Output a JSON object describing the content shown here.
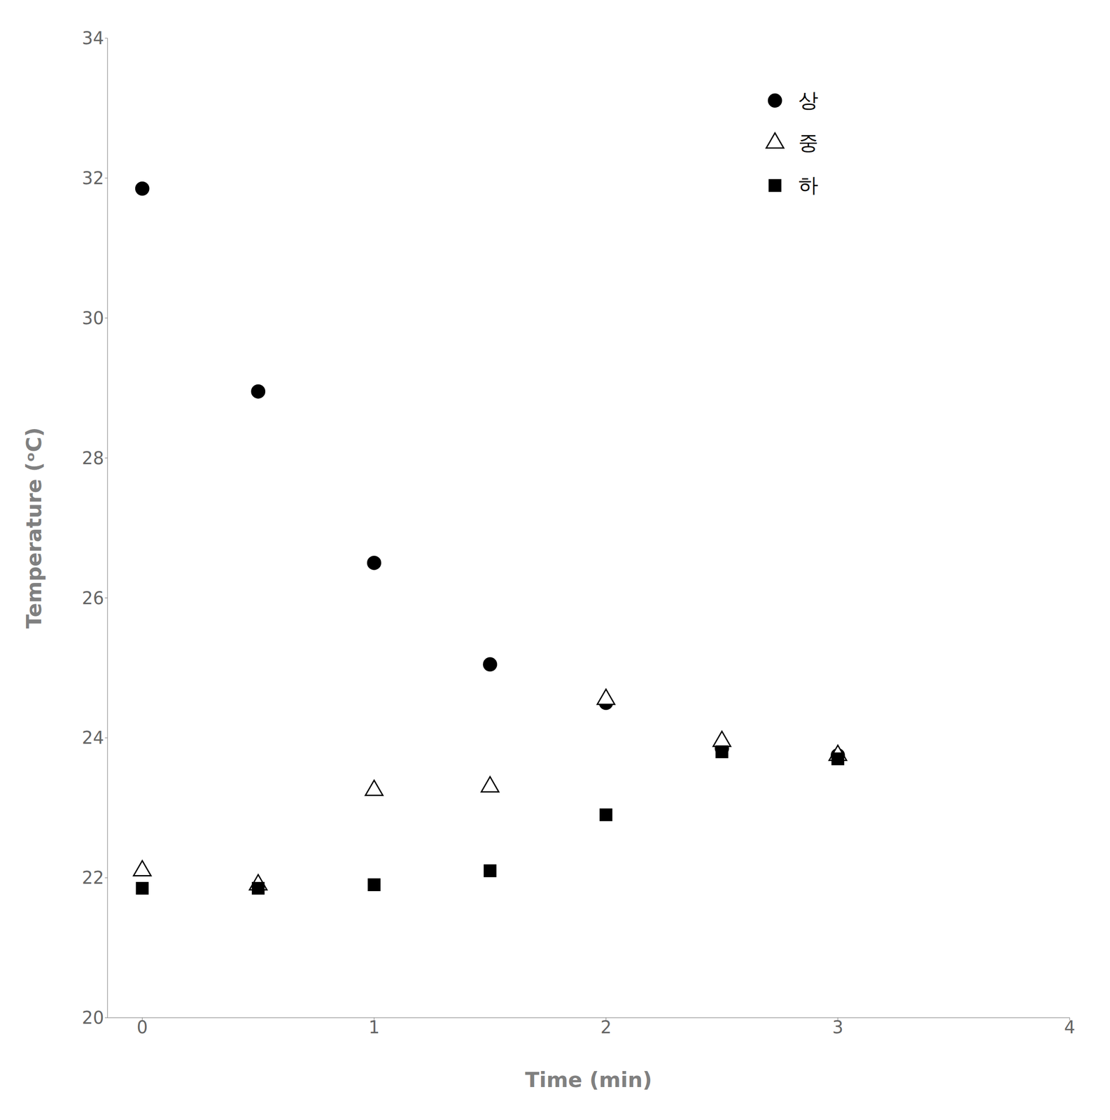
{
  "chart_data": {
    "type": "scatter",
    "xlabel": "Time (min)",
    "ylabel": "Temperature (ᵒC)",
    "xlim": [
      -0.15,
      4.0
    ],
    "ylim": [
      20,
      34
    ],
    "xticks": [
      0,
      1,
      2,
      3,
      4
    ],
    "yticks": [
      20,
      22,
      24,
      26,
      28,
      30,
      32,
      34
    ],
    "grid": false,
    "legend": "upper right",
    "series": [
      {
        "name": "상",
        "color": "#000000",
        "marker": "circle",
        "x": [
          0,
          0.5,
          1,
          1.5,
          2,
          2.5,
          3
        ],
        "values": [
          31.85,
          28.95,
          26.5,
          25.05,
          24.5,
          23.85,
          23.75
        ]
      },
      {
        "name": "중",
        "color": "#000000",
        "marker": "triangle_open",
        "x": [
          0,
          0.5,
          1,
          1.5,
          2,
          2.5,
          3
        ],
        "values": [
          22.1,
          21.9,
          23.25,
          23.3,
          24.55,
          23.95,
          23.75
        ]
      },
      {
        "name": "하",
        "color": "#000000",
        "marker": "square",
        "x": [
          0,
          0.5,
          1,
          1.5,
          2,
          2.5,
          3
        ],
        "values": [
          21.85,
          21.85,
          21.9,
          22.1,
          22.9,
          23.8,
          23.7
        ]
      }
    ]
  }
}
